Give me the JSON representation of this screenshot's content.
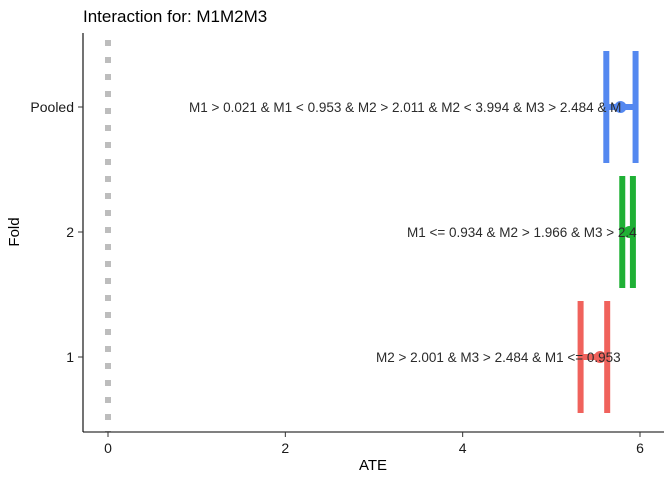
{
  "chart_data": {
    "type": "errorbar",
    "title": "Interaction for: M1M2M3",
    "xlabel": "ATE",
    "ylabel": "Fold",
    "xlim": [
      -0.3,
      6.25
    ],
    "x_ticks": [
      0,
      2,
      4,
      6
    ],
    "categories": [
      "1",
      "2",
      "Pooled"
    ],
    "reference_line": {
      "x": 0,
      "style": "dotted",
      "color": "#bdbdbd"
    },
    "grid": false,
    "legend": "none",
    "series": [
      {
        "category": "1",
        "color": "#f0625c",
        "estimate": 5.55,
        "ci_low": 5.33,
        "ci_high": 5.63,
        "label": "M2 > 2.001 & M3 > 2.484 & M1 <= 0.953"
      },
      {
        "category": "2",
        "color": "#1fb035",
        "estimate": 5.88,
        "ci_low": 5.8,
        "ci_high": 5.92,
        "label": "M1 <= 0.934 & M2 > 1.966 & M3 > 2.4"
      },
      {
        "category": "Pooled",
        "color": "#5488f0",
        "estimate": 5.78,
        "ci_low": 5.62,
        "ci_high": 5.95,
        "label": "M1 > 0.021 & M1 < 0.953 & M2 > 2.011 & M2 < 3.994 & M3 > 2.484 & M"
      }
    ]
  }
}
